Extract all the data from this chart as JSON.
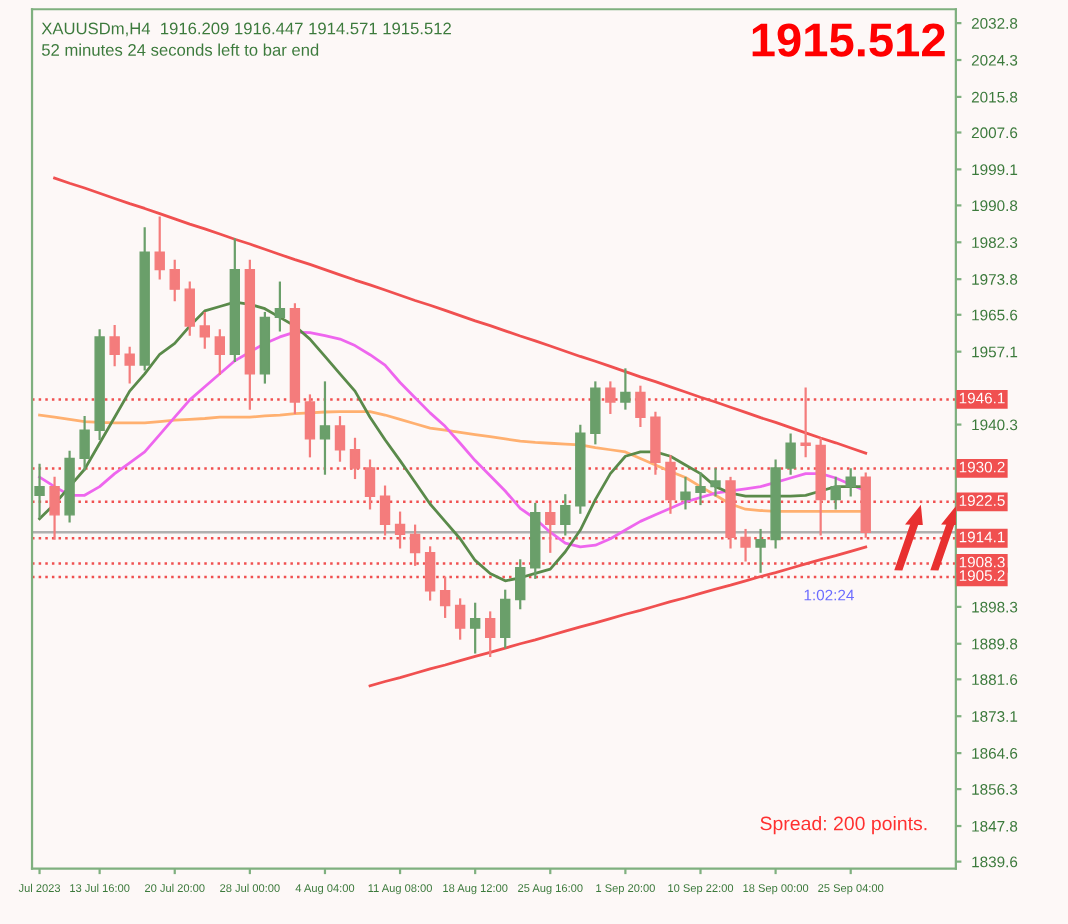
{
  "chart_data": {
    "type": "candlestick",
    "categories": [
      "Jul 2023",
      null,
      null,
      null,
      "13 Jul 16:00",
      null,
      null,
      null,
      null,
      "20 Jul 20:00",
      null,
      null,
      null,
      null,
      "28 Jul 00:00",
      null,
      null,
      null,
      null,
      "4 Aug 04:00",
      null,
      null,
      null,
      null,
      "11 Aug 08:00",
      null,
      null,
      null,
      null,
      "18 Aug 12:00",
      null,
      null,
      null,
      null,
      "25 Aug 16:00",
      null,
      null,
      null,
      null,
      "1 Sep 20:00",
      null,
      null,
      null,
      null,
      "10 Sep 22:00",
      null,
      null,
      null,
      null,
      "18 Sep 00:00",
      null,
      null,
      null,
      null,
      "25 Sep 04:00",
      null
    ],
    "ohlc": [
      [
        1924,
        1931,
        1919,
        1926
      ],
      [
        1926,
        1928,
        1914,
        1919.5
      ],
      [
        1919.5,
        1934,
        1918,
        1932.5
      ],
      [
        1932.5,
        1942,
        1930,
        1939
      ],
      [
        1939,
        1962,
        1937,
        1960.5
      ],
      [
        1960.5,
        1963,
        1954,
        1956.5
      ],
      [
        1956.5,
        1958,
        1950,
        1954
      ],
      [
        1954,
        1985.5,
        1953,
        1980
      ],
      [
        1980,
        1988,
        1974,
        1976
      ],
      [
        1976,
        1978,
        1969,
        1971.5
      ],
      [
        1971.5,
        1973,
        1961,
        1963
      ],
      [
        1963,
        1966,
        1958,
        1960.5
      ],
      [
        1960.5,
        1962,
        1952,
        1956.5
      ],
      [
        1956.5,
        1983,
        1955,
        1976
      ],
      [
        1976,
        1978,
        1944,
        1952
      ],
      [
        1952,
        1966,
        1950,
        1965
      ],
      [
        1965,
        1973,
        1962,
        1967
      ],
      [
        1967,
        1968,
        1943,
        1945.5
      ],
      [
        1945.5,
        1947,
        1933,
        1937
      ],
      [
        1937,
        1950,
        1929,
        1940
      ],
      [
        1940,
        1942,
        1932,
        1934.5
      ],
      [
        1934.5,
        1937,
        1928,
        1930.3
      ],
      [
        1930.3,
        1932,
        1921,
        1923.8
      ],
      [
        1923.8,
        1926,
        1915,
        1917.3
      ],
      [
        1917.3,
        1920,
        1912,
        1915
      ],
      [
        1915,
        1917,
        1908,
        1910.8
      ],
      [
        1910.8,
        1912,
        1900,
        1902
      ],
      [
        1902,
        1905,
        1896,
        1898.6
      ],
      [
        1898.6,
        1900,
        1891,
        1893.4
      ],
      [
        1893.4,
        1899,
        1887.8,
        1895.6
      ],
      [
        1895.6,
        1897,
        1887,
        1891.3
      ],
      [
        1891.3,
        1902,
        1889,
        1900
      ],
      [
        1900,
        1909,
        1898,
        1907.3
      ],
      [
        1907.3,
        1922,
        1905,
        1920
      ],
      [
        1920,
        1922,
        1911,
        1917.3
      ],
      [
        1917.3,
        1924,
        1915,
        1921.6
      ],
      [
        1921.6,
        1940,
        1920,
        1938.3
      ],
      [
        1938.3,
        1950,
        1936,
        1948.7
      ],
      [
        1948.7,
        1950,
        1943,
        1945.5
      ],
      [
        1945.5,
        1953,
        1944,
        1947.7
      ],
      [
        1947.7,
        1949,
        1940,
        1942
      ],
      [
        1942,
        1943,
        1929,
        1931.6
      ],
      [
        1931.6,
        1933,
        1920,
        1923
      ],
      [
        1923,
        1928,
        1921,
        1924.7
      ],
      [
        1924.7,
        1929,
        1922,
        1926
      ],
      [
        1926,
        1930,
        1924,
        1927.3
      ],
      [
        1927.3,
        1928,
        1912,
        1914.3
      ],
      [
        1914.3,
        1916,
        1909,
        1912.1
      ],
      [
        1912.1,
        1916,
        1906.4,
        1913.8
      ],
      [
        1913.8,
        1932,
        1912,
        1930.3
      ],
      [
        1930.3,
        1938,
        1929,
        1936
      ],
      [
        1936,
        1948.6,
        1933,
        1935.5
      ],
      [
        1935.5,
        1937,
        1915,
        1923
      ],
      [
        1923,
        1928,
        1921,
        1926
      ],
      [
        1926,
        1930,
        1924,
        1928.2
      ],
      [
        1928.2,
        1929,
        1914.5,
        1915.5
      ]
    ],
    "colors": [
      "#6a9f6a",
      "#f47c7c",
      "#6a9f6a",
      "#6a9f6a",
      "#6a9f6a",
      "#f47c7c",
      "#f47c7c",
      "#6a9f6a",
      "#f47c7c",
      "#f47c7c",
      "#f47c7c",
      "#f47c7c",
      "#f47c7c",
      "#6a9f6a",
      "#f47c7c",
      "#6a9f6a",
      "#6a9f6a",
      "#f47c7c",
      "#f47c7c",
      "#6a9f6a",
      "#f47c7c",
      "#f47c7c",
      "#f47c7c",
      "#f47c7c",
      "#f47c7c",
      "#f47c7c",
      "#f47c7c",
      "#f47c7c",
      "#f47c7c",
      "#6a9f6a",
      "#f47c7c",
      "#6a9f6a",
      "#6a9f6a",
      "#6a9f6a",
      "#f47c7c",
      "#6a9f6a",
      "#6a9f6a",
      "#6a9f6a",
      "#f47c7c",
      "#6a9f6a",
      "#f47c7c",
      "#f47c7c",
      "#f47c7c",
      "#6a9f6a",
      "#6a9f6a",
      "#6a9f6a",
      "#f47c7c",
      "#f47c7c",
      "#6a9f6a",
      "#6a9f6a",
      "#6a9f6a",
      "#f47c7c",
      "#f47c7c",
      "#6a9f6a",
      "#6a9f6a",
      "#f47c7c"
    ],
    "series": [
      {
        "type": "line",
        "color": "#ffb070",
        "values": [
          1942.5,
          1942,
          1941.5,
          1941,
          1940.8,
          1940.7,
          1940.7,
          1940.7,
          1941,
          1941.3,
          1941.5,
          1941.7,
          1942,
          1942,
          1942,
          1942.3,
          1942.5,
          1942.8,
          1943,
          1943.2,
          1943.3,
          1943.3,
          1943.3,
          1942.5,
          1941.5,
          1940.5,
          1939.5,
          1939,
          1938.5,
          1938,
          1937.5,
          1937,
          1936.5,
          1936.2,
          1936,
          1935.8,
          1935.6,
          1935,
          1934.5,
          1934,
          1932.5,
          1931,
          1929.5,
          1928.1,
          1926,
          1924,
          1922,
          1920.8,
          1920.5,
          1920.3,
          1920.3,
          1920.3,
          1920.3,
          1920.3,
          1920.3,
          1920.3
        ]
      },
      {
        "type": "line",
        "color": "#ee66ee",
        "values": [
          1928.2,
          1926,
          1924,
          1924,
          1926,
          1929,
          1931.5,
          1934,
          1938,
          1942,
          1946,
          1949,
          1952,
          1955,
          1957,
          1959,
          1960.5,
          1961.6,
          1961.5,
          1960.8,
          1960,
          1958.5,
          1956.4,
          1954,
          1950,
          1946.5,
          1943,
          1939.9,
          1936,
          1932,
          1928.5,
          1925,
          1921,
          1918.6,
          1915.5,
          1913,
          1912.1,
          1912.5,
          1914,
          1916,
          1918,
          1919.5,
          1921,
          1922.5,
          1923.5,
          1924.5,
          1925,
          1925.5,
          1926,
          1927,
          1928,
          1929,
          1929,
          1928,
          1926.5,
          1925
        ]
      },
      {
        "type": "line",
        "color": "#5a8a4a",
        "values": [
          1918.6,
          1922,
          1926,
          1930,
          1936,
          1942,
          1948,
          1952,
          1956.5,
          1959,
          1963,
          1966.5,
          1967.5,
          1968.5,
          1968,
          1967,
          1965,
          1963,
          1960,
          1956,
          1952,
          1948,
          1942,
          1936.8,
          1932,
          1927,
          1922,
          1918,
          1914,
          1909,
          1906,
          1904.3,
          1905,
          1906,
          1907,
          1911,
          1916,
          1923,
          1929,
          1933,
          1934,
          1934,
          1933,
          1931,
          1929,
          1926,
          1924.5,
          1923.8,
          1923.8,
          1923.8,
          1923.8,
          1924,
          1925,
          1926,
          1926,
          1926
        ]
      },
      {
        "type": "line",
        "color": "#f05050",
        "values": [
          null,
          1997.1,
          1995.9,
          1994.8,
          1993.6,
          1992.4,
          1991.2,
          1990.1,
          1988.9,
          1987.7,
          1986.5,
          1985.4,
          1984.2,
          1983.0,
          1981.9,
          1980.7,
          1979.5,
          1978.3,
          1977.2,
          1976.0,
          1974.8,
          1973.6,
          1972.5,
          1971.3,
          1970.1,
          1968.9,
          1967.8,
          1966.6,
          1965.4,
          1964.2,
          1963.1,
          1961.9,
          1960.7,
          1959.6,
          1958.4,
          1957.2,
          1956.0,
          1954.9,
          1953.7,
          1952.5,
          1951.3,
          1950.2,
          1949.0,
          1947.8,
          1946.6,
          1945.5,
          1944.3,
          1943.1,
          1941.9,
          1940.8,
          1939.6,
          1938.4,
          1937.2,
          1936.1,
          1934.9,
          1933.7
        ]
      },
      {
        "type": "line",
        "color": "#f05050",
        "values": [
          null,
          null,
          null,
          null,
          null,
          null,
          null,
          null,
          null,
          null,
          null,
          null,
          null,
          null,
          null,
          null,
          null,
          null,
          null,
          null,
          null,
          null,
          1880.1,
          1881.1,
          1882.0,
          1883.0,
          1884.0,
          1884.9,
          1885.9,
          1886.9,
          1887.8,
          1888.8,
          1889.8,
          1890.7,
          1891.7,
          1892.7,
          1893.7,
          1894.6,
          1895.6,
          1896.6,
          1897.5,
          1898.5,
          1899.5,
          1900.4,
          1901.4,
          1902.4,
          1903.3,
          1904.3,
          1905.3,
          1906.2,
          1907.2,
          1908.2,
          1909.2,
          1910.1,
          1911.1,
          1912.1
        ]
      }
    ],
    "ref_lines": [
      {
        "axis": "y",
        "value": 1946.1,
        "label": "1946.1",
        "color": "#f05050",
        "line_style": "dotted"
      },
      {
        "axis": "y",
        "value": 1930.2,
        "label": "1930.2",
        "color": "#f05050",
        "line_style": "dotted"
      },
      {
        "axis": "y",
        "value": 1922.5,
        "label": "1922.5",
        "color": "#f05050",
        "line_style": "dotted"
      },
      {
        "axis": "y",
        "value": 1915.5,
        "color": "#b0b0b0",
        "line_style": "solid"
      },
      {
        "axis": "y",
        "value": 1914.1,
        "label": "1914.1",
        "color": "#f05050",
        "line_style": "dotted"
      },
      {
        "axis": "y",
        "value": 1908.3,
        "label": "1908.3",
        "color": "#f05050",
        "line_style": "dotted"
      },
      {
        "axis": "y",
        "value": 1905.2,
        "label": "1905.2",
        "color": "#f05050",
        "line_style": "dotted"
      }
    ],
    "annotations": [
      "XAUUSDm,H4  1916.209 1916.447 1914.571 1915.512",
      "52 minutes 24 seconds left to bar end",
      "1915.512",
      "Spread: 200 points.",
      "1:02:24"
    ],
    "ylim": [
      1838,
      2036
    ],
    "yticks": [
      2032.8,
      2024.3,
      2015.8,
      2007.6,
      1999.1,
      1990.8,
      1982.3,
      1973.8,
      1965.6,
      1957.1,
      1940.3,
      1898.3,
      1889.8,
      1881.6,
      1873.1,
      1864.6,
      1856.3,
      1847.8,
      1839.6
    ],
    "grid": false,
    "legend": false
  }
}
